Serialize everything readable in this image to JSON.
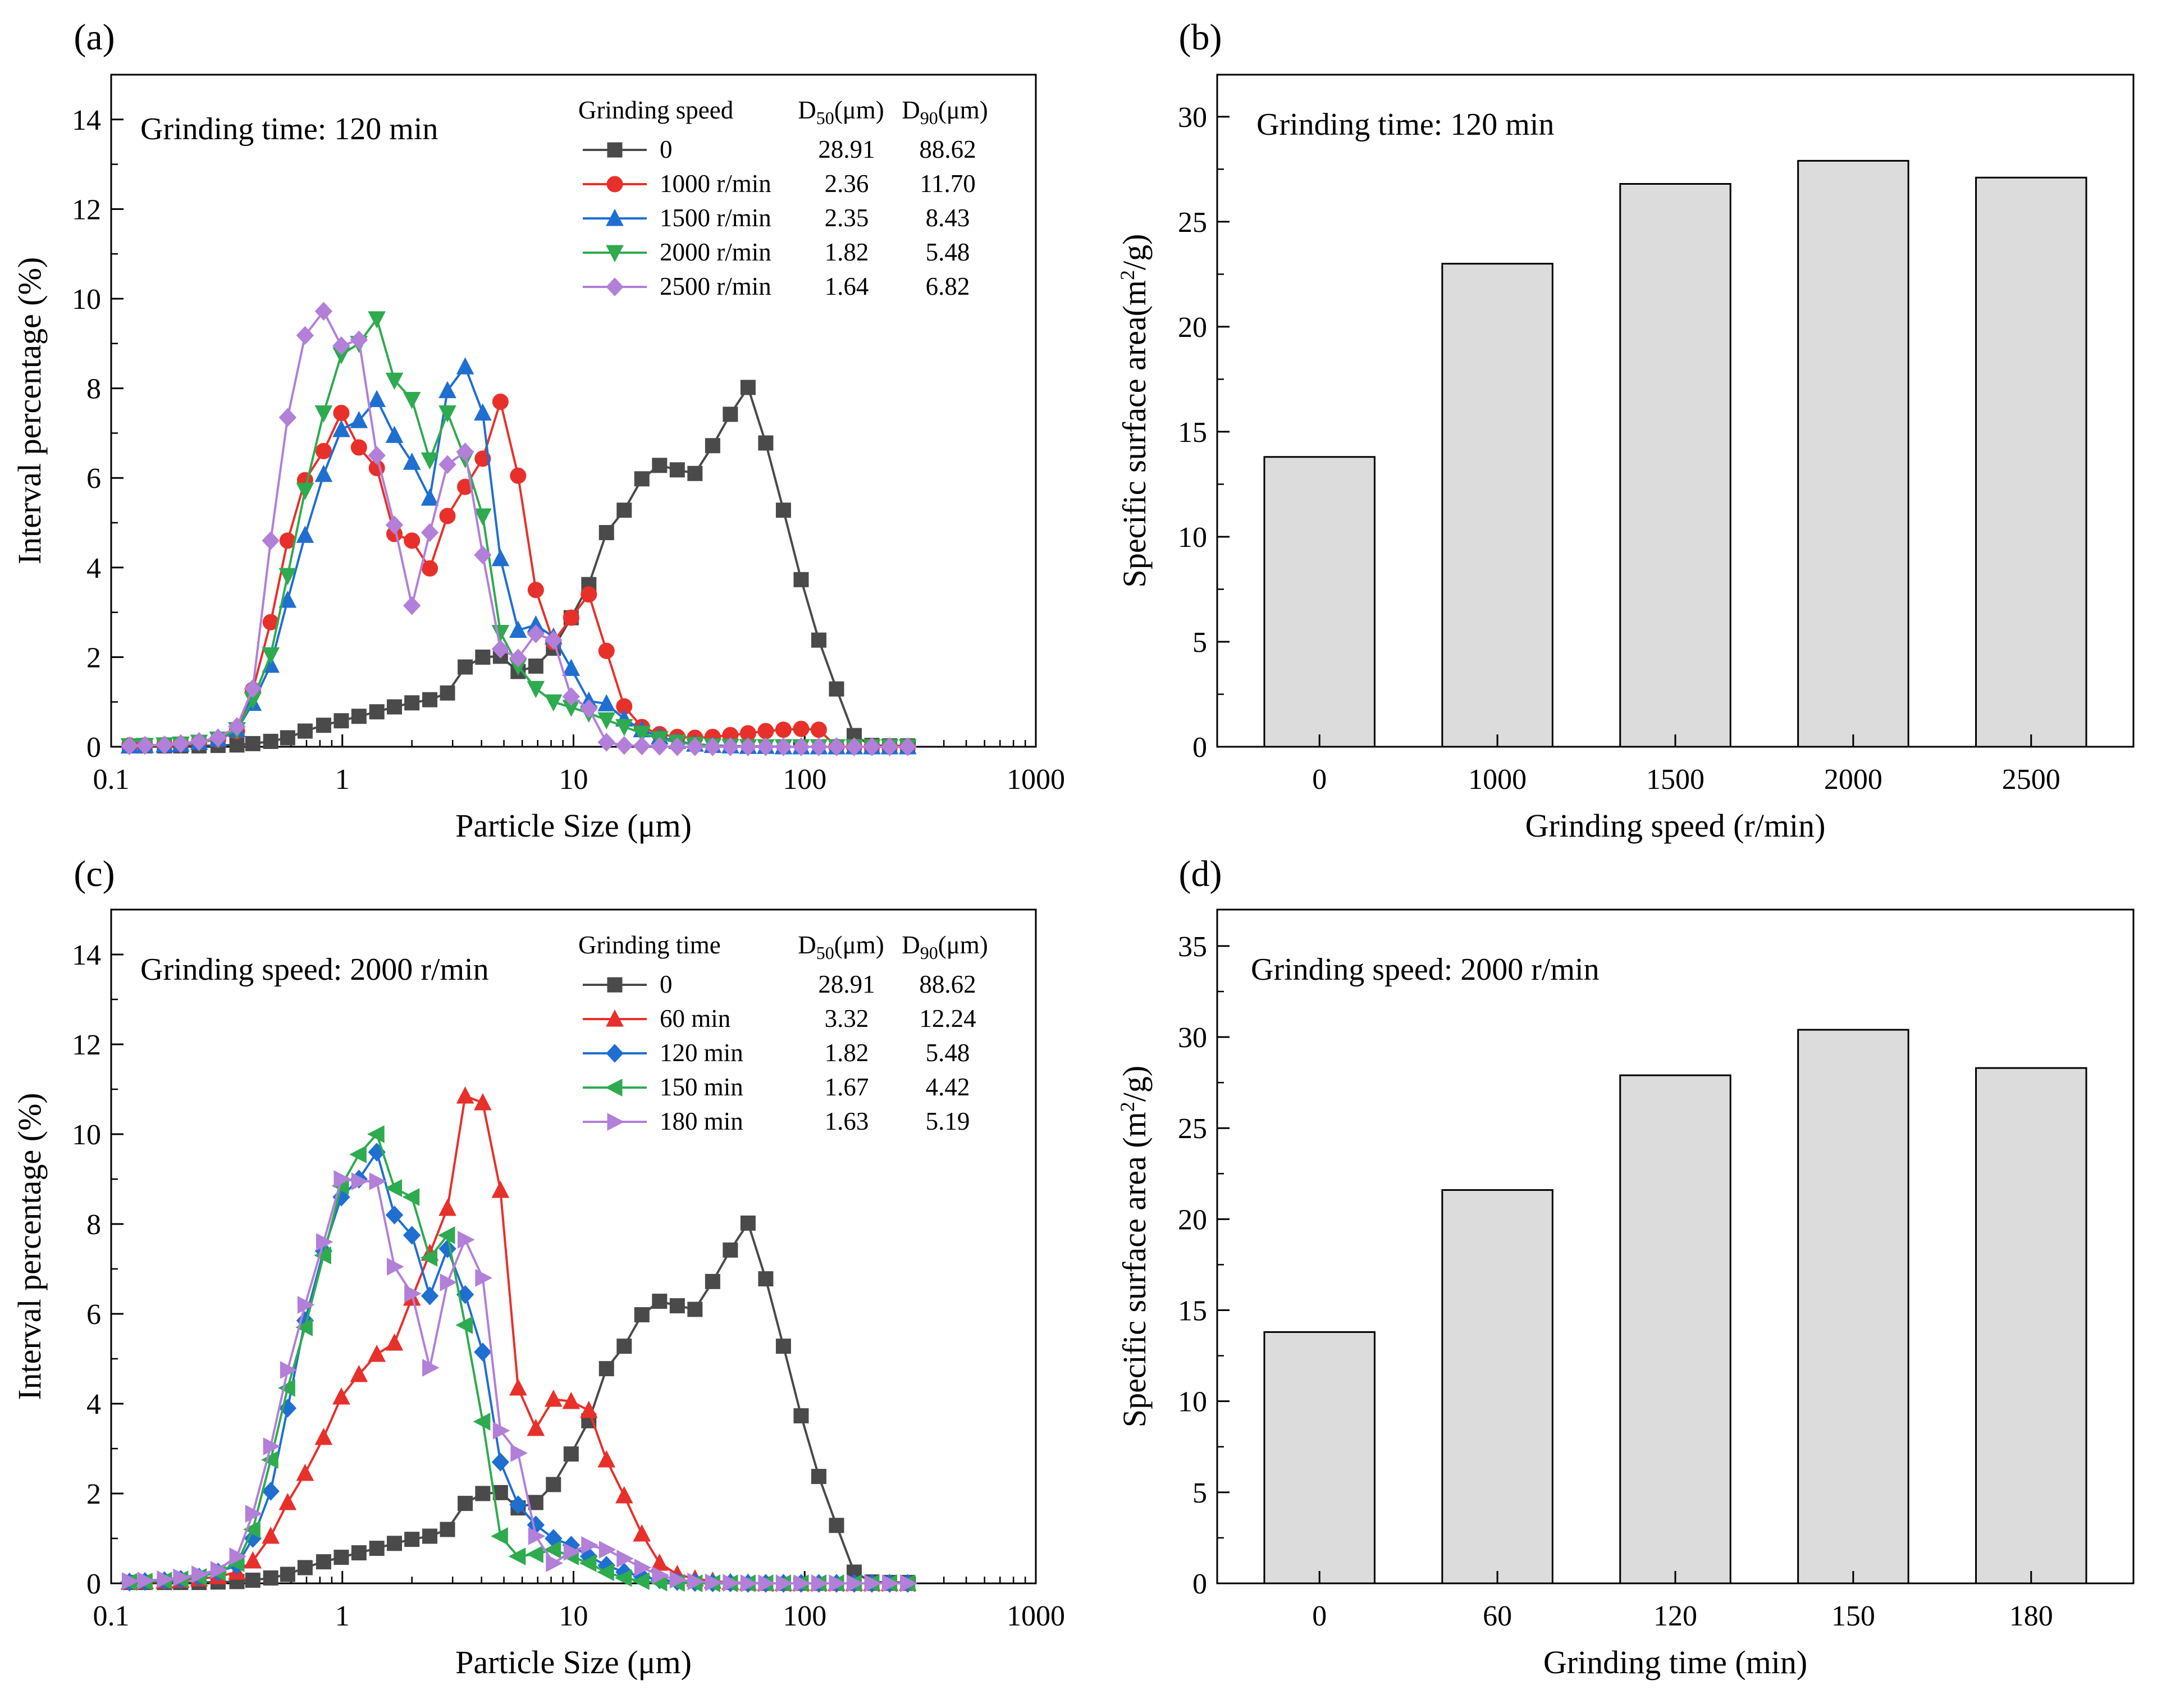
{
  "chart_data": [
    {
      "panel": "(a)",
      "type": "line",
      "annotation": "Grinding time: 120 min",
      "xlabel": "Particle Size (μm)",
      "ylabel": "Interval percentage (%)",
      "xscale": "log",
      "xlim": [
        0.1,
        1000
      ],
      "ylim": [
        0,
        15
      ],
      "xticks": [
        "0.1",
        "1",
        "10",
        "100",
        "1000"
      ],
      "yticks": [
        "0",
        "2",
        "4",
        "6",
        "8",
        "10",
        "12",
        "14"
      ],
      "legend_placement": "top-right",
      "legend_headers": [
        "Grinding speed",
        "D50(μm)",
        "D90(μm)"
      ],
      "x": [
        0.12,
        0.14,
        0.17,
        0.2,
        0.24,
        0.29,
        0.35,
        0.41,
        0.49,
        0.58,
        0.69,
        0.83,
        0.99,
        1.18,
        1.41,
        1.68,
        2.0,
        2.39,
        2.85,
        3.4,
        4.05,
        4.83,
        5.76,
        6.87,
        8.19,
        9.77,
        11.65,
        13.89,
        16.57,
        19.76,
        23.57,
        28.11,
        33.53,
        39.99,
        47.7,
        56.89,
        67.86,
        80.94,
        96.54,
        115.13,
        137.33,
        163.79,
        195.36,
        233.02,
        279.0
      ],
      "series": [
        {
          "name": "0",
          "d50": "28.91",
          "d90": "88.62",
          "color": "#4a4a4a",
          "marker": "square",
          "values": [
            0.02,
            0.02,
            0.02,
            0.02,
            0.02,
            0.03,
            0.04,
            0.07,
            0.12,
            0.2,
            0.35,
            0.48,
            0.58,
            0.68,
            0.78,
            0.89,
            0.98,
            1.05,
            1.2,
            1.78,
            2.0,
            2.02,
            1.68,
            1.8,
            2.2,
            2.88,
            3.62,
            4.78,
            5.28,
            5.98,
            6.28,
            6.18,
            6.1,
            6.72,
            7.42,
            8.02,
            6.78,
            5.28,
            3.73,
            2.38,
            1.29,
            0.25,
            0.03,
            0.02,
            0.02
          ]
        },
        {
          "name": "1000 r/min",
          "d50": "2.36",
          "d90": "11.70",
          "color": "#e8302b",
          "marker": "circle",
          "values": [
            0.03,
            0.03,
            0.04,
            0.06,
            0.1,
            0.16,
            0.35,
            1.27,
            2.78,
            4.6,
            5.95,
            6.6,
            7.45,
            6.68,
            6.22,
            4.75,
            4.6,
            3.98,
            5.15,
            5.8,
            6.43,
            7.7,
            6.05,
            3.5,
            2.34,
            2.88,
            3.4,
            2.14,
            0.9,
            0.44,
            0.28,
            0.22,
            0.2,
            0.22,
            0.26,
            0.3,
            0.35,
            0.38,
            0.4,
            0.38,
            0.0,
            0.0,
            0.0,
            0.0,
            0.0
          ]
        },
        {
          "name": "1500 r/min",
          "d50": "2.35",
          "d90": "8.43",
          "color": "#1f6fd1",
          "marker": "triangle-up",
          "values": [
            0.02,
            0.03,
            0.04,
            0.06,
            0.1,
            0.17,
            0.38,
            0.97,
            1.82,
            3.27,
            4.72,
            6.08,
            7.08,
            7.28,
            7.75,
            6.95,
            6.35,
            5.55,
            7.95,
            8.48,
            7.45,
            4.2,
            2.6,
            2.72,
            2.45,
            1.75,
            1.02,
            0.96,
            0.62,
            0.38,
            0.22,
            0.12,
            0.06,
            0.03,
            0.02,
            0.01,
            0.01,
            0.0,
            0.0,
            0.0,
            0.0,
            0.0,
            0.0,
            0.0,
            0.0
          ]
        },
        {
          "name": "2000 r/min",
          "d50": "1.82",
          "d90": "5.48",
          "color": "#2eab4e",
          "marker": "triangle-down",
          "values": [
            0.02,
            0.03,
            0.04,
            0.06,
            0.1,
            0.17,
            0.38,
            1.05,
            2.05,
            3.82,
            5.72,
            7.45,
            8.75,
            9.0,
            9.55,
            8.18,
            7.75,
            6.4,
            7.45,
            6.43,
            5.15,
            2.55,
            1.8,
            1.3,
            1.0,
            0.88,
            0.75,
            0.6,
            0.45,
            0.3,
            0.18,
            0.1,
            0.05,
            0.02,
            0.01,
            0.0,
            0.0,
            0.0,
            0.0,
            0.0,
            0.0,
            0.0,
            0.0,
            0.0,
            0.0
          ]
        },
        {
          "name": "2500 r/min",
          "d50": "1.64",
          "d90": "6.82",
          "color": "#b27fd9",
          "marker": "diamond",
          "values": [
            0.02,
            0.03,
            0.04,
            0.07,
            0.12,
            0.2,
            0.45,
            1.3,
            4.6,
            7.35,
            9.18,
            9.72,
            8.95,
            9.08,
            6.5,
            4.95,
            3.15,
            4.78,
            6.3,
            6.58,
            4.28,
            2.18,
            1.98,
            2.52,
            2.38,
            1.12,
            0.85,
            0.1,
            0.03,
            0.02,
            0.01,
            0.0,
            0.0,
            0.0,
            0.0,
            0.0,
            0.0,
            0.0,
            0.0,
            0.0,
            0.0,
            0.0,
            0.0,
            0.0,
            0.0
          ]
        }
      ]
    },
    {
      "panel": "(b)",
      "type": "bar",
      "annotation": "Grinding time: 120 min",
      "xlabel": "Grinding speed (r/min)",
      "ylabel": "Specific surface area(m²/g)",
      "categories": [
        "0",
        "1000",
        "1500",
        "2000",
        "2500"
      ],
      "values": [
        13.8,
        23.0,
        26.8,
        27.9,
        27.1
      ],
      "ylim": [
        0,
        32
      ],
      "yticks": [
        "0",
        "5",
        "10",
        "15",
        "20",
        "25",
        "30"
      ],
      "bar_color": "#dcdcdc"
    },
    {
      "panel": "(c)",
      "type": "line",
      "annotation": "Grinding speed: 2000 r/min",
      "xlabel": "Particle Size (μm)",
      "ylabel": "Interval percentage (%)",
      "xscale": "log",
      "xlim": [
        0.1,
        1000
      ],
      "ylim": [
        0,
        15
      ],
      "xticks": [
        "0.1",
        "1",
        "10",
        "100",
        "1000"
      ],
      "yticks": [
        "0",
        "2",
        "4",
        "6",
        "8",
        "10",
        "12",
        "14"
      ],
      "legend_placement": "top-right",
      "legend_headers": [
        "Grinding time",
        "D50(μm)",
        "D90(μm)"
      ],
      "x": [
        0.12,
        0.14,
        0.17,
        0.2,
        0.24,
        0.29,
        0.35,
        0.41,
        0.49,
        0.58,
        0.69,
        0.83,
        0.99,
        1.18,
        1.41,
        1.68,
        2.0,
        2.39,
        2.85,
        3.4,
        4.05,
        4.83,
        5.76,
        6.87,
        8.19,
        9.77,
        11.65,
        13.89,
        16.57,
        19.76,
        23.57,
        28.11,
        33.53,
        39.99,
        47.7,
        56.89,
        67.86,
        80.94,
        96.54,
        115.13,
        137.33,
        163.79,
        195.36,
        233.02,
        279.0
      ],
      "series": [
        {
          "name": "0",
          "d50": "28.91",
          "d90": "88.62",
          "color": "#4a4a4a",
          "marker": "square",
          "values": [
            0.02,
            0.02,
            0.02,
            0.02,
            0.02,
            0.03,
            0.04,
            0.07,
            0.12,
            0.2,
            0.35,
            0.48,
            0.58,
            0.68,
            0.78,
            0.89,
            0.98,
            1.05,
            1.2,
            1.78,
            2.0,
            2.02,
            1.68,
            1.8,
            2.2,
            2.88,
            3.62,
            4.78,
            5.28,
            5.98,
            6.28,
            6.18,
            6.1,
            6.72,
            7.42,
            8.02,
            6.78,
            5.28,
            3.73,
            2.38,
            1.29,
            0.25,
            0.03,
            0.02,
            0.02
          ]
        },
        {
          "name": "60 min",
          "d50": "3.32",
          "d90": "12.24",
          "color": "#e8302b",
          "marker": "triangle-up",
          "values": [
            0.03,
            0.04,
            0.05,
            0.07,
            0.1,
            0.15,
            0.25,
            0.5,
            1.05,
            1.8,
            2.45,
            3.25,
            4.15,
            4.65,
            5.1,
            5.35,
            6.35,
            7.35,
            8.35,
            10.85,
            10.7,
            8.75,
            4.35,
            3.45,
            4.1,
            4.05,
            3.85,
            2.75,
            1.95,
            1.1,
            0.45,
            0.2,
            0.1,
            0.05,
            0.02,
            0.01,
            0.0,
            0.0,
            0.0,
            0.0,
            0.0,
            0.0,
            0.0,
            0.0,
            0.0
          ]
        },
        {
          "name": "120 min",
          "d50": "1.82",
          "d90": "5.48",
          "color": "#1f6fd1",
          "marker": "diamond",
          "values": [
            0.03,
            0.04,
            0.06,
            0.09,
            0.14,
            0.25,
            0.4,
            1.0,
            2.05,
            3.9,
            5.85,
            7.4,
            8.6,
            9.0,
            9.6,
            8.2,
            7.75,
            6.4,
            7.45,
            6.43,
            5.15,
            2.7,
            1.75,
            1.3,
            1.0,
            0.85,
            0.6,
            0.4,
            0.25,
            0.15,
            0.08,
            0.04,
            0.02,
            0.01,
            0.01,
            0.0,
            0.0,
            0.0,
            0.0,
            0.0,
            0.0,
            0.0,
            0.0,
            0.0,
            0.0
          ]
        },
        {
          "name": "150 min",
          "d50": "1.67",
          "d90": "4.42",
          "color": "#2eab4e",
          "marker": "triangle-left",
          "values": [
            0.03,
            0.04,
            0.06,
            0.09,
            0.14,
            0.25,
            0.45,
            1.2,
            2.75,
            4.35,
            5.7,
            7.3,
            8.85,
            9.55,
            10.0,
            8.8,
            8.6,
            7.25,
            7.75,
            5.75,
            3.6,
            1.05,
            0.6,
            0.65,
            0.75,
            0.6,
            0.45,
            0.25,
            0.12,
            0.05,
            0.02,
            0.01,
            0.0,
            0.0,
            0.0,
            0.0,
            0.0,
            0.0,
            0.0,
            0.0,
            0.0,
            0.0,
            0.0,
            0.0,
            0.0
          ]
        },
        {
          "name": "180 min",
          "d50": "1.63",
          "d90": "5.19",
          "color": "#b27fd9",
          "marker": "triangle-right",
          "values": [
            0.05,
            0.06,
            0.09,
            0.13,
            0.2,
            0.3,
            0.6,
            1.55,
            3.05,
            4.75,
            6.2,
            7.6,
            9.0,
            8.95,
            8.95,
            7.05,
            6.45,
            4.8,
            6.7,
            7.65,
            6.8,
            3.4,
            2.9,
            1.05,
            0.45,
            0.7,
            0.85,
            0.75,
            0.55,
            0.35,
            0.18,
            0.08,
            0.04,
            0.02,
            0.01,
            0.0,
            0.0,
            0.0,
            0.0,
            0.0,
            0.0,
            0.0,
            0.0,
            0.0,
            0.0
          ]
        }
      ]
    },
    {
      "panel": "(d)",
      "type": "bar",
      "annotation": "Grinding speed: 2000 r/min",
      "xlabel": "Grinding time (min)",
      "ylabel": "Specific surface area (m²/g)",
      "categories": [
        "0",
        "60",
        "120",
        "150",
        "180"
      ],
      "values": [
        13.8,
        21.6,
        27.9,
        30.4,
        28.3
      ],
      "ylim": [
        0,
        37
      ],
      "yticks": [
        "0",
        "5",
        "10",
        "15",
        "20",
        "25",
        "30",
        "35"
      ],
      "bar_color": "#dcdcdc"
    }
  ]
}
